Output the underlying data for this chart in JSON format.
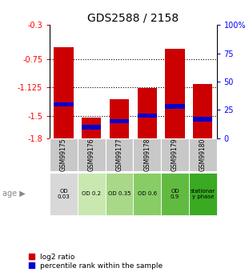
{
  "title": "GDS2588 / 2158",
  "samples": [
    "GSM99175",
    "GSM99176",
    "GSM99177",
    "GSM99178",
    "GSM99179",
    "GSM99180"
  ],
  "log2_ratios": [
    -0.6,
    -1.53,
    -1.28,
    -1.13,
    -0.62,
    -1.08
  ],
  "percentile_ranks": [
    30,
    10,
    15,
    20,
    28,
    17
  ],
  "ylim_left": [
    -1.8,
    -0.3
  ],
  "ylim_right": [
    0,
    100
  ],
  "yticks_left": [
    -1.8,
    -1.5,
    -1.125,
    -0.75,
    -0.3
  ],
  "yticks_right": [
    0,
    25,
    50,
    75,
    100
  ],
  "ytick_labels_left": [
    "-1.8",
    "-1.5",
    "-1.125",
    "-0.75",
    "-0.3"
  ],
  "ytick_labels_right": [
    "0",
    "25",
    "50",
    "75",
    "100%"
  ],
  "hlines": [
    -0.75,
    -1.125,
    -1.5
  ],
  "bar_color_red": "#cc0000",
  "bar_color_blue": "#0000cc",
  "age_labels": [
    "OD\n0.03",
    "OD 0.2",
    "OD 0.35",
    "OD 0.6",
    "OD\n0.9",
    "stationar\ny phase"
  ],
  "age_bg_colors": [
    "#d8d8d8",
    "#c8e8b0",
    "#a8d888",
    "#88cc66",
    "#60bb40",
    "#3aaa22"
  ],
  "gsm_bg_color": "#c8c8c8",
  "legend_red_label": "log2 ratio",
  "legend_blue_label": "percentile rank within the sample",
  "title_fontsize": 10
}
